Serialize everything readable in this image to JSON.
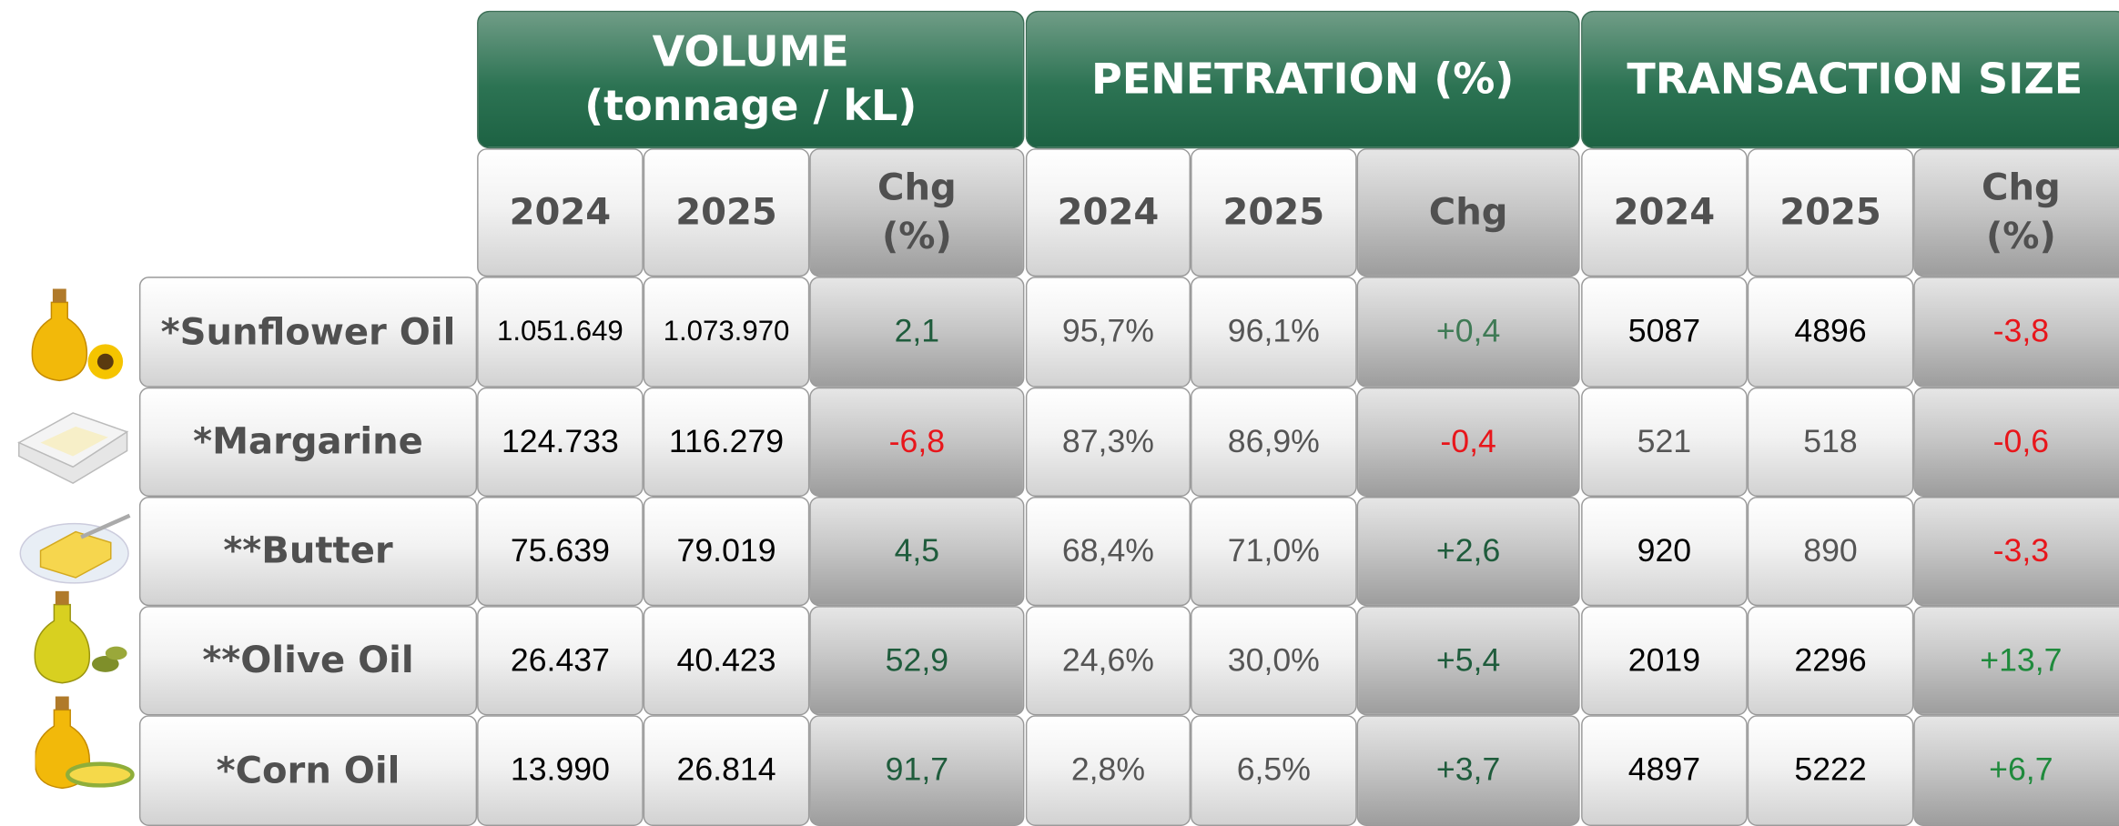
{
  "table": {
    "groups": [
      "VOLUME\n(tonnage / kL)",
      "PENETRATION (%)",
      "TRANSACTION SIZE"
    ],
    "subheaders": [
      "2024",
      "2025",
      "Chg\n(%)",
      "2024",
      "2025",
      "Chg",
      "2024",
      "2025",
      "Chg\n(%)"
    ],
    "rows": [
      {
        "label": "*Sunflower Oil",
        "cells": [
          "1.051.649",
          "1.073.970",
          "2,1",
          "95,7%",
          "96,1%",
          "+0,4",
          "5087",
          "4896",
          "-3,8"
        ],
        "colors": [
          "#000000",
          "#000000",
          "#1f5c3c",
          "#555555",
          "#555555",
          "#3f7a55",
          "#000000",
          "#000000",
          "#e8161b"
        ]
      },
      {
        "label": "*Margarine",
        "cells": [
          "124.733",
          "116.279",
          "-6,8",
          "87,3%",
          "86,9%",
          "-0,4",
          "521",
          "518",
          "-0,6"
        ],
        "colors": [
          "#000000",
          "#000000",
          "#e8161b",
          "#555555",
          "#555555",
          "#e8161b",
          "#555555",
          "#555555",
          "#e8161b"
        ]
      },
      {
        "label": "**Butter",
        "cells": [
          "75.639",
          "79.019",
          "4,5",
          "68,4%",
          "71,0%",
          "+2,6",
          "920",
          "890",
          "-3,3"
        ],
        "colors": [
          "#000000",
          "#000000",
          "#1f5c3c",
          "#555555",
          "#555555",
          "#1f5c3c",
          "#000000",
          "#555555",
          "#e8161b"
        ]
      },
      {
        "label": "**Olive Oil",
        "cells": [
          "26.437",
          "40.423",
          "52,9",
          "24,6%",
          "30,0%",
          "+5,4",
          "2019",
          "2296",
          "+13,7"
        ],
        "colors": [
          "#000000",
          "#000000",
          "#1f5c3c",
          "#555555",
          "#555555",
          "#1f5c3c",
          "#000000",
          "#000000",
          "#1f8a3c"
        ]
      },
      {
        "label": "*Corn Oil",
        "cells": [
          "13.990",
          "26.814",
          "91,7",
          "2,8%",
          "6,5%",
          "+3,7",
          "4897",
          "5222",
          "+6,7"
        ],
        "colors": [
          "#000000",
          "#000000",
          "#1f5c3c",
          "#555555",
          "#555555",
          "#1f5c3c",
          "#000000",
          "#000000",
          "#1f8a3c"
        ]
      }
    ]
  }
}
